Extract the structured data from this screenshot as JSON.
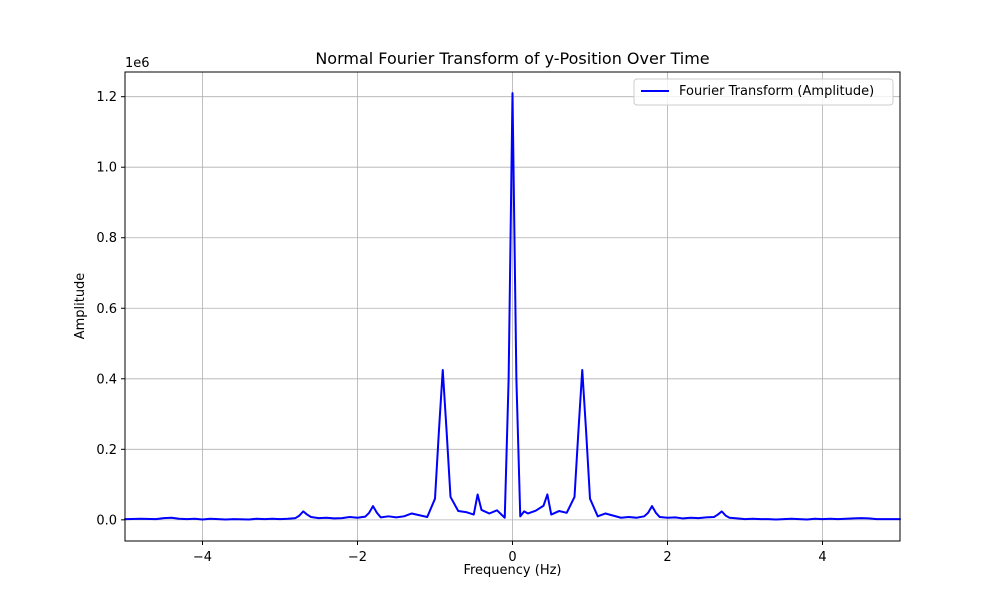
{
  "chart_data": {
    "type": "line",
    "title": "Normal Fourier Transform of y-Position Over Time",
    "xlabel": "Frequency (Hz)",
    "ylabel": "Amplitude",
    "y_scale_label": "1e6",
    "xlim": [
      -5,
      5
    ],
    "ylim": [
      -0.06,
      1.27
    ],
    "x_ticks": [
      -4,
      -2,
      0,
      2,
      4
    ],
    "y_ticks": [
      0.0,
      0.2,
      0.4,
      0.6,
      0.8,
      1.0,
      1.2
    ],
    "x_tick_labels": [
      "−4",
      "−2",
      "0",
      "2",
      "4"
    ],
    "y_tick_labels": [
      "0.0",
      "0.2",
      "0.4",
      "0.6",
      "0.8",
      "1.0",
      "1.2"
    ],
    "grid": true,
    "legend_position": "top-right",
    "series": [
      {
        "name": "Fourier Transform (Amplitude)",
        "color": "#0000ff",
        "x": [
          -5.0,
          -4.8,
          -4.6,
          -4.5,
          -4.4,
          -4.3,
          -4.2,
          -4.1,
          -4.0,
          -3.9,
          -3.8,
          -3.7,
          -3.6,
          -3.4,
          -3.3,
          -3.2,
          -3.1,
          -3.0,
          -2.9,
          -2.8,
          -2.75,
          -2.7,
          -2.65,
          -2.6,
          -2.5,
          -2.4,
          -2.3,
          -2.2,
          -2.1,
          -2.0,
          -1.9,
          -1.85,
          -1.8,
          -1.75,
          -1.7,
          -1.6,
          -1.5,
          -1.4,
          -1.3,
          -1.2,
          -1.1,
          -1.0,
          -0.95,
          -0.9,
          -0.85,
          -0.8,
          -0.7,
          -0.6,
          -0.5,
          -0.45,
          -0.4,
          -0.3,
          -0.2,
          -0.1,
          -0.05,
          0.0,
          0.05,
          0.1,
          0.15,
          0.2,
          0.3,
          0.4,
          0.45,
          0.5,
          0.6,
          0.7,
          0.8,
          0.85,
          0.9,
          0.95,
          1.0,
          1.1,
          1.2,
          1.3,
          1.4,
          1.5,
          1.6,
          1.7,
          1.75,
          1.8,
          1.85,
          1.9,
          2.0,
          2.1,
          2.2,
          2.3,
          2.4,
          2.5,
          2.6,
          2.65,
          2.7,
          2.75,
          2.8,
          2.9,
          3.0,
          3.1,
          3.2,
          3.3,
          3.4,
          3.5,
          3.6,
          3.7,
          3.8,
          3.9,
          4.0,
          4.1,
          4.2,
          4.3,
          4.4,
          4.5,
          4.6,
          4.7,
          4.8,
          5.0
        ],
        "y": [
          0.002,
          0.003,
          0.002,
          0.005,
          0.006,
          0.003,
          0.002,
          0.003,
          0.001,
          0.003,
          0.002,
          0.001,
          0.002,
          0.001,
          0.003,
          0.002,
          0.003,
          0.002,
          0.003,
          0.005,
          0.012,
          0.024,
          0.015,
          0.008,
          0.005,
          0.006,
          0.004,
          0.005,
          0.008,
          0.006,
          0.009,
          0.02,
          0.039,
          0.02,
          0.007,
          0.01,
          0.007,
          0.01,
          0.018,
          0.013,
          0.008,
          0.06,
          0.25,
          0.425,
          0.25,
          0.065,
          0.025,
          0.022,
          0.015,
          0.072,
          0.028,
          0.018,
          0.027,
          0.006,
          0.4,
          1.21,
          0.4,
          0.01,
          0.024,
          0.018,
          0.026,
          0.04,
          0.072,
          0.015,
          0.025,
          0.02,
          0.065,
          0.25,
          0.425,
          0.25,
          0.06,
          0.01,
          0.018,
          0.012,
          0.006,
          0.008,
          0.006,
          0.01,
          0.02,
          0.039,
          0.02,
          0.008,
          0.006,
          0.007,
          0.004,
          0.006,
          0.005,
          0.007,
          0.008,
          0.015,
          0.024,
          0.012,
          0.006,
          0.004,
          0.002,
          0.003,
          0.002,
          0.002,
          0.001,
          0.002,
          0.003,
          0.002,
          0.001,
          0.003,
          0.002,
          0.003,
          0.002,
          0.003,
          0.004,
          0.005,
          0.004,
          0.002,
          0.002,
          0.002
        ]
      }
    ]
  }
}
